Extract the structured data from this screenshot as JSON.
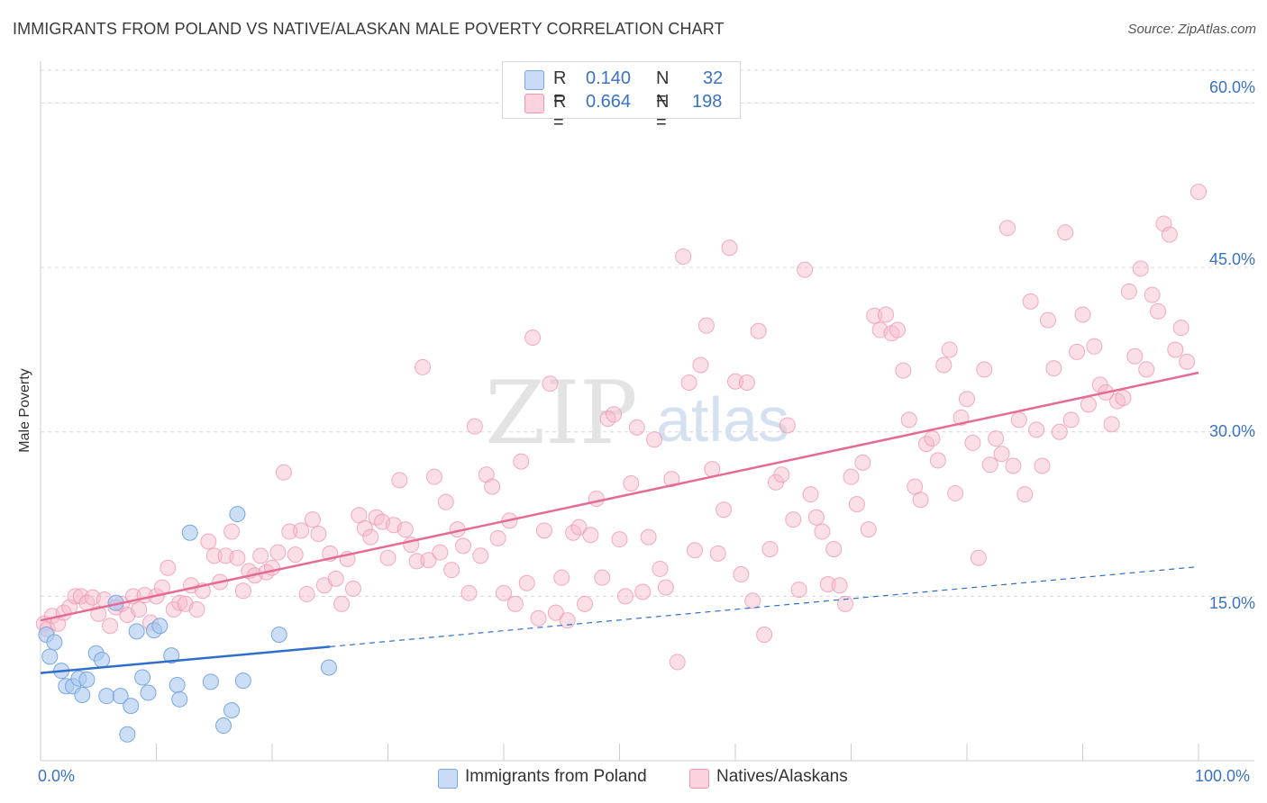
{
  "title": "IMMIGRANTS FROM POLAND VS NATIVE/ALASKAN MALE POVERTY CORRELATION CHART",
  "source": "Source: ZipAtlas.com",
  "watermark": {
    "zip": "ZIP",
    "atlas": "atlas"
  },
  "legend_top": {
    "rows": [
      {
        "r_label": "R =",
        "r_value": "0.140",
        "n_label": "N =",
        "n_value": "32",
        "color": "#a9c8f0"
      },
      {
        "r_label": "R =",
        "r_value": "0.664",
        "n_label": "N =",
        "n_value": "198",
        "color": "#f6b8c9"
      }
    ]
  },
  "legend_bottom": [
    {
      "label": "Immigrants from Poland",
      "color": "#a9c8f0"
    },
    {
      "label": "Natives/Alaskans",
      "color": "#f6b8c9"
    }
  ],
  "colors": {
    "blue_fill": "#a9c8f0",
    "blue_stroke": "#7aa7e0",
    "blue_line": "#2f6fca",
    "pink_fill": "#f6b8c9",
    "pink_stroke": "#ee97b0",
    "pink_line": "#e56b95",
    "grid": "#d8d8d8",
    "tick_text": "#3a72c4"
  },
  "chart_data": {
    "type": "scatter",
    "title": "IMMIGRANTS FROM POLAND VS NATIVE/ALASKAN MALE POVERTY CORRELATION CHART",
    "xlabel": "",
    "ylabel": "Male Poverty",
    "xlim": [
      0,
      100
    ],
    "ylim": [
      0,
      63
    ],
    "x_tick_labels": [
      "0.0%",
      "100.0%"
    ],
    "y_ticks": [
      15,
      30,
      45,
      60
    ],
    "y_tick_labels": [
      "15.0%",
      "30.0%",
      "45.0%",
      "60.0%"
    ],
    "grid": "horizontal dashed",
    "legend_placement": "top-center",
    "series": [
      {
        "name": "Immigrants from Poland",
        "points": [
          [
            0.5,
            11.5
          ],
          [
            0.8,
            9.5
          ],
          [
            1.2,
            10.8
          ],
          [
            1.8,
            8.2
          ],
          [
            2.2,
            6.8
          ],
          [
            2.8,
            6.8
          ],
          [
            3.3,
            7.5
          ],
          [
            3.6,
            6.0
          ],
          [
            4.0,
            7.4
          ],
          [
            4.8,
            9.8
          ],
          [
            5.3,
            9.2
          ],
          [
            5.7,
            5.9
          ],
          [
            6.5,
            14.4
          ],
          [
            6.9,
            5.9
          ],
          [
            7.5,
            2.4
          ],
          [
            7.8,
            5.0
          ],
          [
            8.3,
            11.8
          ],
          [
            8.8,
            7.6
          ],
          [
            9.3,
            6.2
          ],
          [
            9.8,
            11.9
          ],
          [
            10.3,
            12.3
          ],
          [
            11.3,
            9.6
          ],
          [
            11.8,
            6.9
          ],
          [
            12.0,
            5.6
          ],
          [
            12.9,
            20.8
          ],
          [
            14.7,
            7.2
          ],
          [
            15.8,
            3.2
          ],
          [
            16.5,
            4.6
          ],
          [
            17.0,
            22.5
          ],
          [
            17.5,
            7.3
          ],
          [
            20.6,
            11.5
          ],
          [
            24.9,
            8.5
          ]
        ],
        "trend": [
          [
            0,
            8.0
          ],
          [
            25,
            10.4
          ]
        ],
        "trend_extension": [
          [
            25,
            10.4
          ],
          [
            100,
            17.7
          ]
        ]
      },
      {
        "name": "Natives/Alaskans",
        "points": [
          [
            0.3,
            12.5
          ],
          [
            0.6,
            12.0
          ],
          [
            1.0,
            13.2
          ],
          [
            1.5,
            12.5
          ],
          [
            2.0,
            13.5
          ],
          [
            2.5,
            14.0
          ],
          [
            3.0,
            15.0
          ],
          [
            3.5,
            15.0
          ],
          [
            4.0,
            14.4
          ],
          [
            4.5,
            14.9
          ],
          [
            5.0,
            13.4
          ],
          [
            5.5,
            14.7
          ],
          [
            6.0,
            12.3
          ],
          [
            6.5,
            14.0
          ],
          [
            7.0,
            14.3
          ],
          [
            7.5,
            13.3
          ],
          [
            8.0,
            15.0
          ],
          [
            8.5,
            13.8
          ],
          [
            9.0,
            15.1
          ],
          [
            9.5,
            12.6
          ],
          [
            10.0,
            15.0
          ],
          [
            10.5,
            15.8
          ],
          [
            11.0,
            17.6
          ],
          [
            11.5,
            13.8
          ],
          [
            12.0,
            14.4
          ],
          [
            12.5,
            14.3
          ],
          [
            13.0,
            16.0
          ],
          [
            13.5,
            13.8
          ],
          [
            14.0,
            15.5
          ],
          [
            14.5,
            20.0
          ],
          [
            15.0,
            18.7
          ],
          [
            15.5,
            16.3
          ],
          [
            16.0,
            18.7
          ],
          [
            16.5,
            20.9
          ],
          [
            17.0,
            18.5
          ],
          [
            17.5,
            15.5
          ],
          [
            18.0,
            17.3
          ],
          [
            18.5,
            16.9
          ],
          [
            19.0,
            18.7
          ],
          [
            19.5,
            17.2
          ],
          [
            20.0,
            17.6
          ],
          [
            20.5,
            19.0
          ],
          [
            21.0,
            26.3
          ],
          [
            21.5,
            20.9
          ],
          [
            22.0,
            18.8
          ],
          [
            22.5,
            21.0
          ],
          [
            23.0,
            15.2
          ],
          [
            23.5,
            22.0
          ],
          [
            24.0,
            20.7
          ],
          [
            24.5,
            16.0
          ],
          [
            25.0,
            18.9
          ],
          [
            25.5,
            16.6
          ],
          [
            26.0,
            14.3
          ],
          [
            26.5,
            18.4
          ],
          [
            27.0,
            15.7
          ],
          [
            27.5,
            22.4
          ],
          [
            28.0,
            21.2
          ],
          [
            28.5,
            20.4
          ],
          [
            29.0,
            22.2
          ],
          [
            29.5,
            21.8
          ],
          [
            30.0,
            18.5
          ],
          [
            30.5,
            21.5
          ],
          [
            31.0,
            25.6
          ],
          [
            31.5,
            21.1
          ],
          [
            32.0,
            19.7
          ],
          [
            32.5,
            18.2
          ],
          [
            33.0,
            35.9
          ],
          [
            33.5,
            18.3
          ],
          [
            34.0,
            25.9
          ],
          [
            34.5,
            19.0
          ],
          [
            35.0,
            23.6
          ],
          [
            35.5,
            17.4
          ],
          [
            36.0,
            21.1
          ],
          [
            36.5,
            19.6
          ],
          [
            37.0,
            15.3
          ],
          [
            37.5,
            30.5
          ],
          [
            38.0,
            18.7
          ],
          [
            38.5,
            26.1
          ],
          [
            39.0,
            25.0
          ],
          [
            39.5,
            20.3
          ],
          [
            40.0,
            15.3
          ],
          [
            40.5,
            21.9
          ],
          [
            41.0,
            14.3
          ],
          [
            41.5,
            27.3
          ],
          [
            42.0,
            16.2
          ],
          [
            42.5,
            38.6
          ],
          [
            43.0,
            13.0
          ],
          [
            43.5,
            21.0
          ],
          [
            44.0,
            34.4
          ],
          [
            44.5,
            13.5
          ],
          [
            45.0,
            16.7
          ],
          [
            45.5,
            12.8
          ],
          [
            46.0,
            20.8
          ],
          [
            46.5,
            21.3
          ],
          [
            47.0,
            14.3
          ],
          [
            47.5,
            20.6
          ],
          [
            48.0,
            23.9
          ],
          [
            48.5,
            16.7
          ],
          [
            49.0,
            31.2
          ],
          [
            49.5,
            31.6
          ],
          [
            50.0,
            20.2
          ],
          [
            50.5,
            15.0
          ],
          [
            51.0,
            25.3
          ],
          [
            51.5,
            30.4
          ],
          [
            52.0,
            15.4
          ],
          [
            52.5,
            20.4
          ],
          [
            53.0,
            29.3
          ],
          [
            53.5,
            17.5
          ],
          [
            54.0,
            15.8
          ],
          [
            54.5,
            25.7
          ],
          [
            55.0,
            9.0
          ],
          [
            55.5,
            46.0
          ],
          [
            56.0,
            34.5
          ],
          [
            56.5,
            19.2
          ],
          [
            57.0,
            36.1
          ],
          [
            57.5,
            39.7
          ],
          [
            58.0,
            26.6
          ],
          [
            58.5,
            18.9
          ],
          [
            59.0,
            22.9
          ],
          [
            59.5,
            46.8
          ],
          [
            60.0,
            34.6
          ],
          [
            60.5,
            17.0
          ],
          [
            61.0,
            34.5
          ],
          [
            61.5,
            14.6
          ],
          [
            62.0,
            39.2
          ],
          [
            62.5,
            11.5
          ],
          [
            63.0,
            19.3
          ],
          [
            63.5,
            25.4
          ],
          [
            64.0,
            26.1
          ],
          [
            64.5,
            30.6
          ],
          [
            65.0,
            22.0
          ],
          [
            65.5,
            15.6
          ],
          [
            66.0,
            44.8
          ],
          [
            66.5,
            24.3
          ],
          [
            67.0,
            22.2
          ],
          [
            67.5,
            20.9
          ],
          [
            68.0,
            16.1
          ],
          [
            68.5,
            19.3
          ],
          [
            69.0,
            16.0
          ],
          [
            69.5,
            14.3
          ],
          [
            70.0,
            25.9
          ],
          [
            70.5,
            23.4
          ],
          [
            71.0,
            27.2
          ],
          [
            71.5,
            21.1
          ],
          [
            72.0,
            40.6
          ],
          [
            72.5,
            39.3
          ],
          [
            73.0,
            40.7
          ],
          [
            73.5,
            39.0
          ],
          [
            74.0,
            39.3
          ],
          [
            74.5,
            35.6
          ],
          [
            75.0,
            31.1
          ],
          [
            75.5,
            25.0
          ],
          [
            76.0,
            23.8
          ],
          [
            76.5,
            28.9
          ],
          [
            77.0,
            29.4
          ],
          [
            77.5,
            27.4
          ],
          [
            78.0,
            36.1
          ],
          [
            78.5,
            37.5
          ],
          [
            79.0,
            24.4
          ],
          [
            79.5,
            31.3
          ],
          [
            80.0,
            33.0
          ],
          [
            80.5,
            29.0
          ],
          [
            81.0,
            18.5
          ],
          [
            81.5,
            35.7
          ],
          [
            82.0,
            27.0
          ],
          [
            82.5,
            29.4
          ],
          [
            83.0,
            28.0
          ],
          [
            83.5,
            48.6
          ],
          [
            84.0,
            26.9
          ],
          [
            84.5,
            31.1
          ],
          [
            85.0,
            24.3
          ],
          [
            85.5,
            41.9
          ],
          [
            86.0,
            30.2
          ],
          [
            86.5,
            26.9
          ],
          [
            87.0,
            40.2
          ],
          [
            87.5,
            35.8
          ],
          [
            88.0,
            30.0
          ],
          [
            88.5,
            48.2
          ],
          [
            89.0,
            31.1
          ],
          [
            89.5,
            37.3
          ],
          [
            90.0,
            40.7
          ],
          [
            90.5,
            32.5
          ],
          [
            91.0,
            37.8
          ],
          [
            91.5,
            34.3
          ],
          [
            92.0,
            33.6
          ],
          [
            92.5,
            30.7
          ],
          [
            93.0,
            32.8
          ],
          [
            93.5,
            33.1
          ],
          [
            94.0,
            42.8
          ],
          [
            94.5,
            36.9
          ],
          [
            95.0,
            44.9
          ],
          [
            95.5,
            35.7
          ],
          [
            96.0,
            42.5
          ],
          [
            96.5,
            41.0
          ],
          [
            97.0,
            49.0
          ],
          [
            97.5,
            48.0
          ],
          [
            98.0,
            37.5
          ],
          [
            98.5,
            39.5
          ],
          [
            99.0,
            36.4
          ],
          [
            100.0,
            51.9
          ]
        ],
        "trend": [
          [
            0,
            12.8
          ],
          [
            100,
            35.4
          ]
        ]
      }
    ]
  }
}
